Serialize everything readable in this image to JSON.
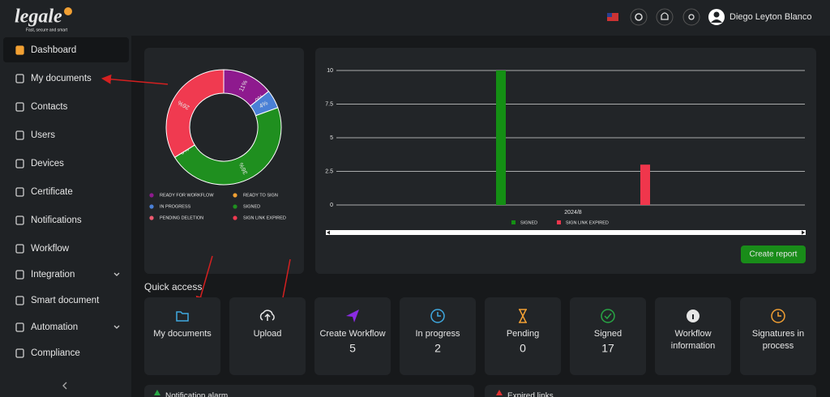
{
  "logo": {
    "name": "legale",
    "tagline": "Fast, secure and smart"
  },
  "header": {
    "user": "Diego Leyton Blanco"
  },
  "sidebar": {
    "items": [
      {
        "label": "Dashboard",
        "active": true
      },
      {
        "label": "My documents"
      },
      {
        "label": "Contacts"
      },
      {
        "label": "Users"
      },
      {
        "label": "Devices"
      },
      {
        "label": "Certificate"
      },
      {
        "label": "Notifications"
      },
      {
        "label": "Workflow"
      },
      {
        "label": "Integration",
        "submenu": true
      },
      {
        "label": "Smart document"
      },
      {
        "label": "Automation",
        "submenu": true
      },
      {
        "label": "Compliance"
      }
    ]
  },
  "chart_data": [
    {
      "type": "pie",
      "donut": true,
      "categories": [
        "READY FOR WORKFLOW",
        "READY TO SIGN",
        "IN PROGRESS",
        "SIGNED",
        "PENDING DELETION",
        "SIGN LINK EXPIRED"
      ],
      "values": [
        11,
        0,
        4,
        36,
        0,
        26
      ],
      "value_labels": [
        "11%",
        "0%",
        "4%",
        "36%",
        "0%",
        "26%"
      ],
      "colors": [
        "#8e1a8e",
        "#f2a033",
        "#4a80d6",
        "#1f8f1f",
        "#ee5a70",
        "#f03a50"
      ]
    },
    {
      "type": "bar",
      "categories": [
        "2024/8"
      ],
      "series": [
        {
          "name": "SIGNED",
          "color": "#148f14",
          "values": [
            10
          ]
        },
        {
          "name": "SIGN LINK EXPIRED",
          "color": "#f0364c",
          "values": [
            3
          ]
        }
      ],
      "ylim": [
        0,
        10
      ],
      "yticks": [
        0,
        2.5,
        5,
        7.5,
        10
      ],
      "grid": true,
      "legend": "bottom"
    }
  ],
  "report_button": "Create report",
  "quick_access": {
    "title": "Quick access",
    "cards": [
      {
        "label": "My documents",
        "icon": "folder",
        "color": "#3fa9e0"
      },
      {
        "label": "Upload",
        "icon": "upload",
        "color": "#e6e6e6"
      },
      {
        "label": "Create Workflow",
        "count": 5,
        "icon": "send",
        "color": "#8a2be2"
      },
      {
        "label": "In progress",
        "count": 2,
        "icon": "clock",
        "color": "#3fa9e0"
      },
      {
        "label": "Pending",
        "count": 0,
        "icon": "hourglass",
        "color": "#f2a033"
      },
      {
        "label": "Signed",
        "count": 17,
        "icon": "check",
        "color": "#28a745"
      },
      {
        "label": "Workflow information",
        "icon": "info",
        "color": "#e6e6e6"
      },
      {
        "label": "Signatures in process",
        "icon": "clock",
        "color": "#f2a033"
      }
    ]
  },
  "panels": [
    "Notification alarm",
    "Expired links"
  ]
}
